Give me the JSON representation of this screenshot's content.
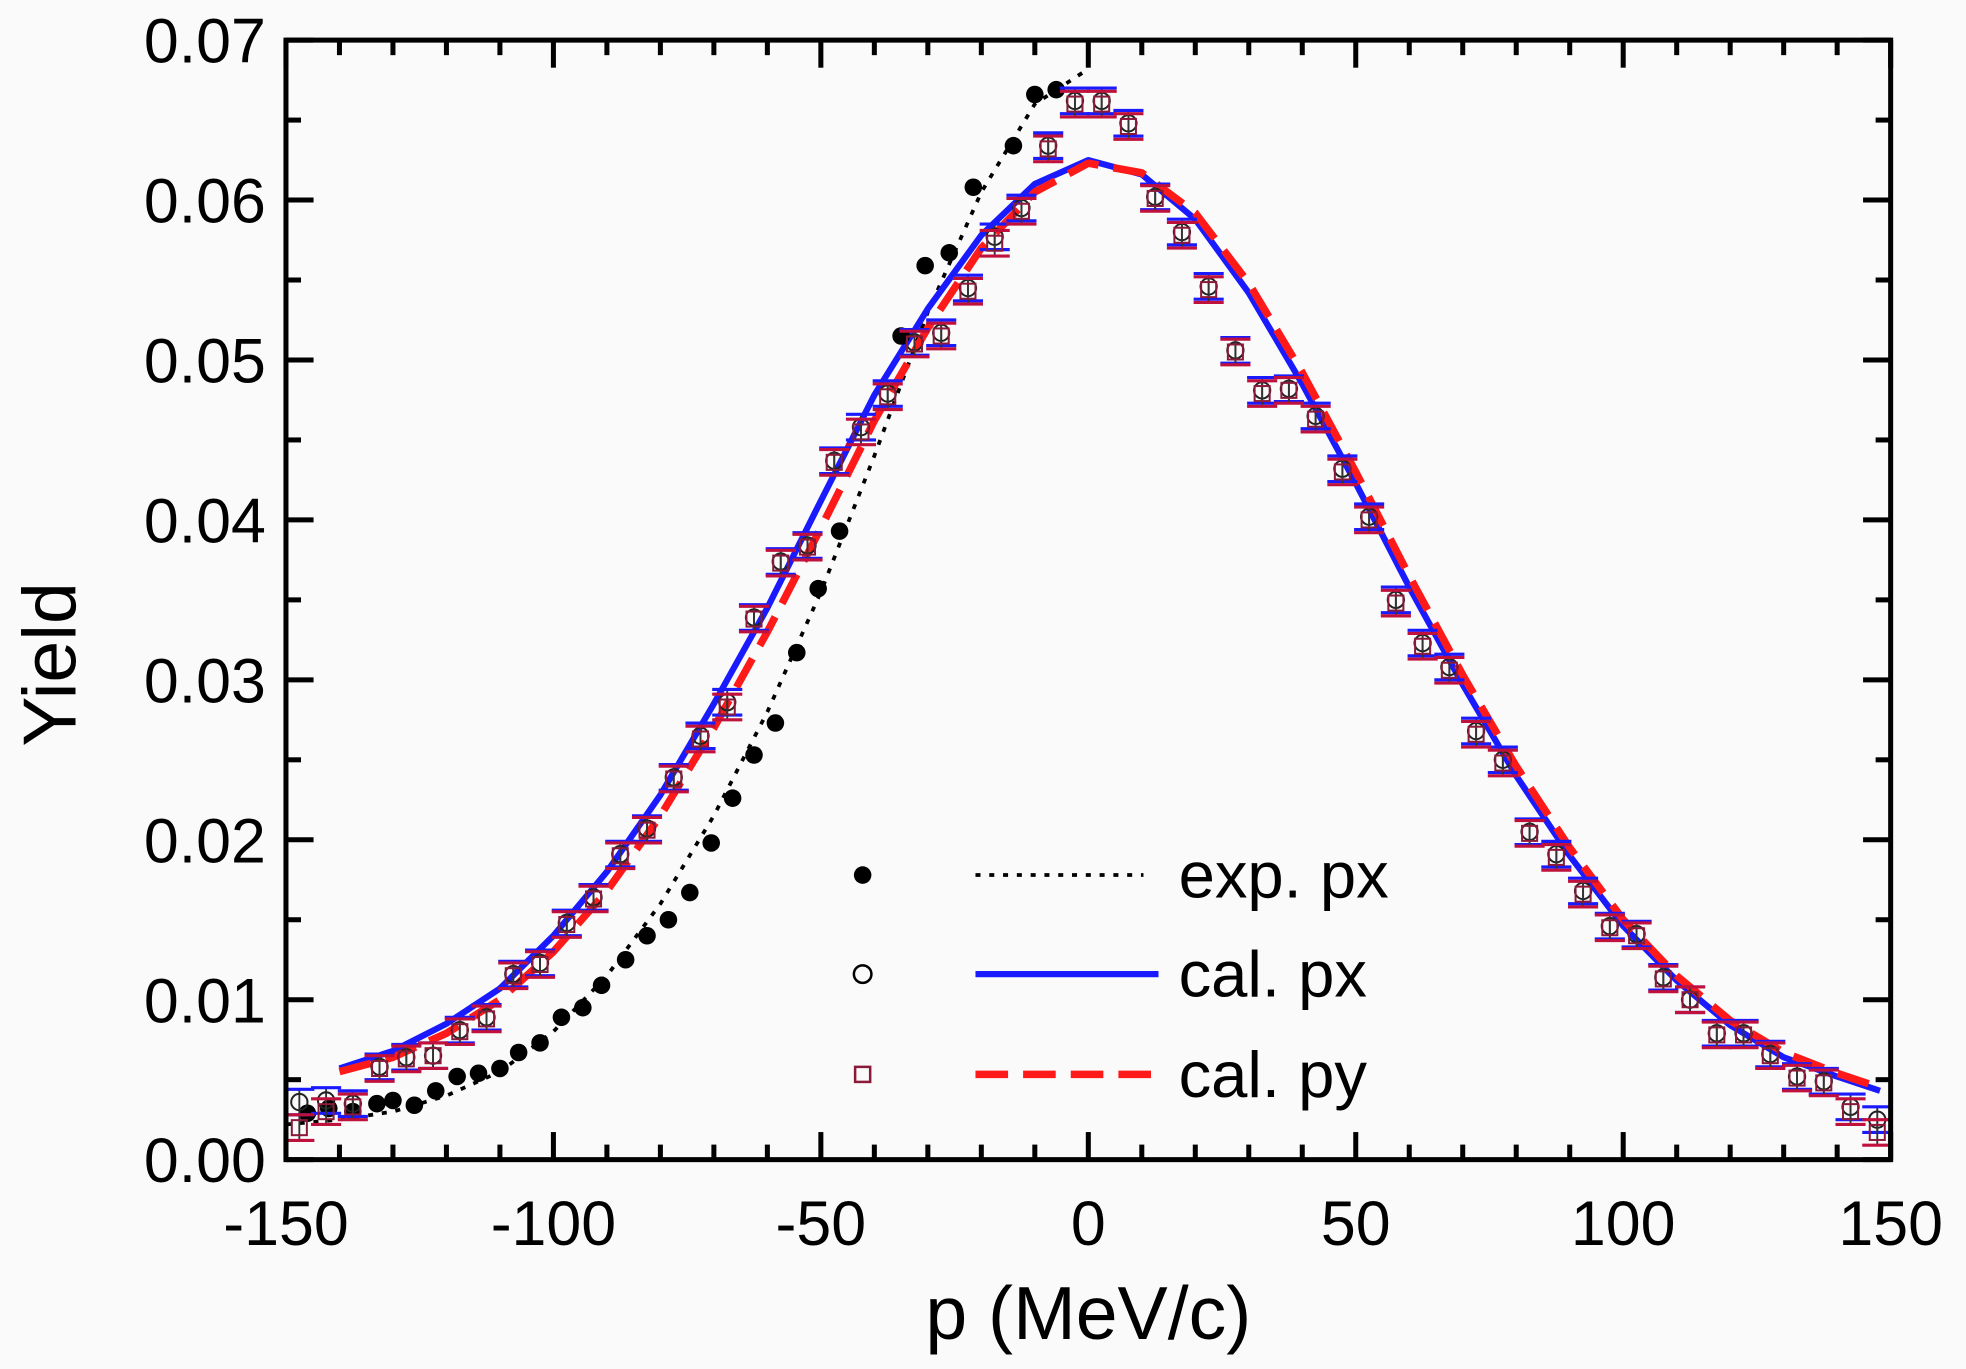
{
  "chart_data": {
    "type": "scatter",
    "title": "",
    "xlabel": "p (MeV/c)",
    "ylabel": "Yield",
    "xlim": [
      -150,
      150
    ],
    "ylim": [
      0,
      0.07
    ],
    "x_ticks": [
      "-150",
      "-100",
      "-50",
      "0",
      "50",
      "100",
      "150"
    ],
    "y_ticks": [
      "0.00",
      "0.01",
      "0.02",
      "0.03",
      "0.04",
      "0.05",
      "0.06",
      "0.07"
    ],
    "grid": false,
    "legend_placement": "bottom-center",
    "legend": [
      {
        "marker": "filled-circle",
        "line": "dotted",
        "label": "exp. px"
      },
      {
        "marker": "open-circle",
        "line": "solid",
        "label": "cal. px"
      },
      {
        "marker": "open-square",
        "line": "dashed",
        "label": "cal. py"
      }
    ],
    "colors": {
      "exp_px": "#000000",
      "cal_px": "#1a1aff",
      "cal_py": "#ff1a1a",
      "marker_open": "#8b1a3a"
    },
    "markers": [
      {
        "style": "filled-circle",
        "x": [
          -146,
          -142,
          -137.5,
          -133,
          -130,
          -126,
          -122,
          -118,
          -114,
          -110,
          -106.5,
          -102.5,
          -98.5,
          -94.5,
          -91,
          -86.5,
          -82.5,
          -78.5,
          -74.5,
          -70.5,
          -66.5,
          -62.5,
          -58.5,
          -54.5,
          -50.5,
          -46.5,
          -35,
          -30.5,
          -26,
          -21.5,
          -14,
          -10,
          -6
        ],
        "y": [
          0.0029,
          0.0032,
          0.003,
          0.0035,
          0.0037,
          0.0034,
          0.0043,
          0.0052,
          0.0054,
          0.0057,
          0.0067,
          0.0073,
          0.0089,
          0.0095,
          0.0109,
          0.0125,
          0.014,
          0.015,
          0.0167,
          0.0198,
          0.0226,
          0.0253,
          0.0273,
          0.0317,
          0.0357,
          0.0393,
          0.0515,
          0.0559,
          0.0567,
          0.0608,
          0.0634,
          0.0666,
          0.0669
        ]
      },
      {
        "style": "open-circle",
        "error": 0.0008,
        "x": [
          -147.5,
          -142.5,
          -137.5,
          -132.5,
          -127.5,
          -122.5,
          -117.5,
          -112.5,
          -107.5,
          -102.5,
          -97.5,
          -92.5,
          -87.5,
          -82.5,
          -77.5,
          -72.5,
          -67.5,
          -62.5,
          -57.5,
          -52.5,
          -47.5,
          -42.5,
          -37.5,
          -32.5,
          -27.5,
          -22.5,
          -17.5,
          -12.5,
          -7.5,
          -2.5,
          2.5,
          7.5,
          12.5,
          17.5,
          22.5,
          27.5,
          32.5,
          37.5,
          42.5,
          47.5,
          52.5,
          57.5,
          62.5,
          67.5,
          72.5,
          77.5,
          82.5,
          87.5,
          92.5,
          97.5,
          102.5,
          107.5,
          112.5,
          117.5,
          122.5,
          127.5,
          132.5,
          137.5,
          142.5,
          147.5
        ],
        "y": [
          0.0036,
          0.0037,
          0.0035,
          0.0058,
          0.0064,
          0.0065,
          0.0081,
          0.0089,
          0.0116,
          0.0123,
          0.0148,
          0.0164,
          0.0191,
          0.0207,
          0.0239,
          0.0265,
          0.0286,
          0.0339,
          0.0374,
          0.0384,
          0.0437,
          0.0458,
          0.0479,
          0.0511,
          0.0517,
          0.0545,
          0.0577,
          0.0595,
          0.0634,
          0.0662,
          0.0662,
          0.0648,
          0.0602,
          0.058,
          0.0546,
          0.0506,
          0.0481,
          0.0482,
          0.0465,
          0.0432,
          0.0402,
          0.035,
          0.0323,
          0.0308,
          0.0268,
          0.025,
          0.0205,
          0.0191,
          0.0168,
          0.0146,
          0.0141,
          0.0114,
          0.01,
          0.0079,
          0.0079,
          0.0066,
          0.0052,
          0.0049,
          0.0033,
          0.0025
        ]
      },
      {
        "style": "open-square",
        "error": 0.0008,
        "x": [
          -147.5,
          -142.5,
          -137.5,
          -132.5,
          -127.5,
          -122.5,
          -117.5,
          -112.5,
          -107.5,
          -102.5,
          -97.5,
          -92.5,
          -87.5,
          -82.5,
          -77.5,
          -72.5,
          -67.5,
          -62.5,
          -57.5,
          -52.5,
          -47.5,
          -42.5,
          -37.5,
          -32.5,
          -27.5,
          -22.5,
          -17.5,
          -12.5,
          -7.5,
          -2.5,
          2.5,
          7.5,
          12.5,
          17.5,
          22.5,
          27.5,
          32.5,
          37.5,
          42.5,
          47.5,
          52.5,
          57.5,
          62.5,
          67.5,
          72.5,
          77.5,
          82.5,
          87.5,
          92.5,
          97.5,
          102.5,
          107.5,
          112.5,
          117.5,
          122.5,
          127.5,
          132.5,
          137.5,
          142.5,
          147.5
        ],
        "y": [
          0.002,
          0.003,
          0.0033,
          0.0057,
          0.0063,
          0.0065,
          0.008,
          0.0088,
          0.0115,
          0.0122,
          0.0147,
          0.0163,
          0.019,
          0.0206,
          0.0238,
          0.0263,
          0.0283,
          0.0338,
          0.0373,
          0.0383,
          0.0436,
          0.0455,
          0.0477,
          0.051,
          0.0515,
          0.0543,
          0.0573,
          0.0593,
          0.0632,
          0.066,
          0.066,
          0.0646,
          0.0601,
          0.0578,
          0.0544,
          0.0505,
          0.0479,
          0.0481,
          0.0463,
          0.043,
          0.04,
          0.0348,
          0.0321,
          0.0306,
          0.0266,
          0.0248,
          0.0204,
          0.0189,
          0.0166,
          0.0145,
          0.014,
          0.0113,
          0.01,
          0.0078,
          0.0078,
          0.0065,
          0.0051,
          0.0048,
          0.003,
          0.0017
        ]
      }
    ],
    "series": [
      {
        "name": "exp. px",
        "style": "dotted",
        "color": "#000000",
        "x": [
          -150,
          -140,
          -130,
          -120,
          -110,
          -100,
          -90,
          -80,
          -70,
          -60,
          -50,
          -40,
          -30,
          -20,
          -10,
          0
        ],
        "y": [
          0.0022,
          0.0025,
          0.003,
          0.004,
          0.0055,
          0.008,
          0.0115,
          0.016,
          0.0215,
          0.028,
          0.0355,
          0.044,
          0.053,
          0.0605,
          0.066,
          0.0682
        ]
      },
      {
        "name": "cal. px",
        "style": "solid",
        "color": "#1a1aff",
        "x": [
          -140,
          -130,
          -120,
          -110,
          -100,
          -90,
          -80,
          -70,
          -60,
          -50,
          -40,
          -30,
          -20,
          -10,
          0,
          10,
          20,
          30,
          40,
          50,
          60,
          70,
          80,
          90,
          100,
          110,
          120,
          130,
          140,
          148
        ],
        "y": [
          0.0057,
          0.0068,
          0.0085,
          0.0107,
          0.014,
          0.018,
          0.0228,
          0.0285,
          0.0345,
          0.0412,
          0.0478,
          0.0532,
          0.0578,
          0.061,
          0.0625,
          0.0616,
          0.0588,
          0.0542,
          0.0485,
          0.0423,
          0.0358,
          0.0297,
          0.024,
          0.019,
          0.0146,
          0.0112,
          0.0084,
          0.0064,
          0.0052,
          0.0043
        ]
      },
      {
        "name": "cal. py",
        "style": "dashed",
        "color": "#ff1a1a",
        "x": [
          -140,
          -130,
          -120,
          -110,
          -100,
          -90,
          -80,
          -70,
          -60,
          -50,
          -40,
          -30,
          -20,
          -10,
          0,
          10,
          20,
          30,
          40,
          50,
          60,
          70,
          80,
          90,
          100,
          110,
          120,
          130,
          140,
          148
        ],
        "y": [
          0.0055,
          0.0064,
          0.0079,
          0.01,
          0.013,
          0.0168,
          0.0215,
          0.027,
          0.033,
          0.0395,
          0.0462,
          0.052,
          0.057,
          0.0605,
          0.0623,
          0.0617,
          0.0592,
          0.0548,
          0.0492,
          0.043,
          0.0365,
          0.0303,
          0.0246,
          0.0195,
          0.015,
          0.0115,
          0.0087,
          0.0067,
          0.0054,
          0.0045
        ]
      }
    ]
  }
}
